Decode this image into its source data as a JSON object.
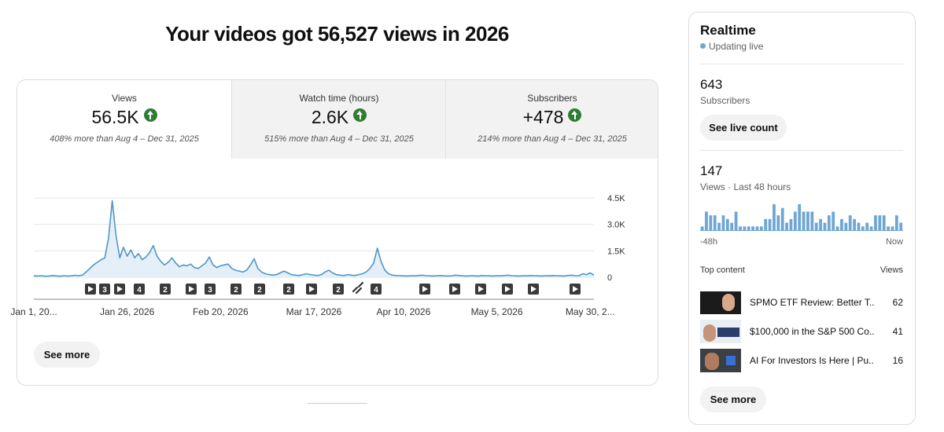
{
  "header": {
    "title": "Your videos got 56,527 views in 2026"
  },
  "metrics": [
    {
      "label": "Views",
      "value": "56.5K",
      "note": "408% more than Aug 4 – Dec 31, 2025"
    },
    {
      "label": "Watch time (hours)",
      "value": "2.6K",
      "note": "515% more than Aug 4 – Dec 31, 2025"
    },
    {
      "label": "Subscribers",
      "value": "+478",
      "note": "214% more than Aug 4 – Dec 31, 2025"
    }
  ],
  "chart_data": {
    "type": "line",
    "color": "#4f97c9",
    "fill": "#e4eff8",
    "grid": true,
    "ylim": [
      0,
      4500
    ],
    "yticks": [
      0,
      {
        "value": 1500,
        "label": "1.5K"
      },
      {
        "value": 3000,
        "label": "3.0K"
      },
      {
        "value": 4500,
        "label": "4.5K"
      }
    ],
    "categories": [
      "Jan 1, 20...",
      null,
      null,
      null,
      null,
      null,
      null,
      null,
      null,
      null,
      null,
      null,
      null,
      null,
      null,
      null,
      null,
      null,
      null,
      null,
      null,
      null,
      null,
      null,
      null,
      "Jan 26, 2026",
      null,
      null,
      null,
      null,
      null,
      null,
      null,
      null,
      null,
      null,
      null,
      null,
      null,
      null,
      null,
      null,
      null,
      null,
      null,
      null,
      null,
      null,
      null,
      null,
      "Feb 20, 2026",
      null,
      null,
      null,
      null,
      null,
      null,
      null,
      null,
      null,
      null,
      null,
      null,
      null,
      null,
      null,
      null,
      null,
      null,
      null,
      null,
      null,
      null,
      null,
      null,
      "Mar 17, 2026",
      null,
      null,
      null,
      null,
      null,
      null,
      null,
      null,
      null,
      null,
      null,
      null,
      null,
      null,
      null,
      null,
      null,
      null,
      null,
      null,
      null,
      null,
      null,
      "Apr 10, 2026",
      null,
      null,
      null,
      null,
      null,
      null,
      null,
      null,
      null,
      null,
      null,
      null,
      null,
      null,
      null,
      null,
      null,
      null,
      null,
      null,
      null,
      null,
      null,
      null,
      "May 5, 2026",
      null,
      null,
      null,
      null,
      null,
      null,
      null,
      null,
      null,
      null,
      null,
      null,
      null,
      null,
      null,
      null,
      null,
      null,
      null,
      null,
      null,
      null,
      null,
      null,
      "May 30, 2...",
      null
    ],
    "values": [
      80,
      70,
      90,
      60,
      70,
      100,
      80,
      60,
      90,
      70,
      80,
      110,
      90,
      120,
      300,
      500,
      700,
      850,
      1000,
      1100,
      2200,
      4350,
      2400,
      1100,
      1700,
      1200,
      1550,
      1100,
      1350,
      1000,
      1150,
      1400,
      1800,
      1200,
      900,
      700,
      850,
      1100,
      800,
      600,
      700,
      650,
      750,
      550,
      500,
      650,
      800,
      1150,
      700,
      550,
      650,
      700,
      750,
      500,
      400,
      350,
      300,
      400,
      700,
      1050,
      500,
      300,
      200,
      150,
      120,
      150,
      250,
      350,
      250,
      150,
      120,
      100,
      150,
      200,
      150,
      120,
      100,
      150,
      300,
      400,
      250,
      150,
      120,
      100,
      150,
      120,
      100,
      150,
      200,
      300,
      500,
      800,
      1650,
      900,
      400,
      200,
      120,
      100,
      90,
      80,
      70,
      90,
      80,
      100,
      120,
      90,
      80,
      70,
      90,
      100,
      80,
      70,
      90,
      120,
      100,
      80,
      70,
      90,
      80,
      70,
      100,
      90,
      80,
      70,
      90,
      80,
      100,
      120,
      90,
      80,
      70,
      90,
      80,
      100,
      90,
      80,
      70,
      90,
      80,
      100,
      90,
      80,
      70,
      100,
      120,
      90,
      80,
      200,
      150,
      250,
      120
    ],
    "markers": [
      "3",
      "4",
      "2",
      "3",
      "2",
      "2",
      "2",
      "2",
      "4"
    ]
  },
  "see_more": "See more",
  "realtime": {
    "title": "Realtime",
    "status": "Updating live",
    "subscribers": {
      "value": 643,
      "label": "Subscribers"
    },
    "button": "See live count",
    "views": {
      "value": 147,
      "label": "Views · Last 48 hours"
    },
    "chart": {
      "type": "bar",
      "color": "#6ea6d3",
      "values": [
        1,
        5,
        4,
        4,
        2,
        4,
        3,
        2,
        5,
        1,
        1,
        1,
        1,
        1,
        1,
        3,
        3,
        7,
        4,
        6,
        2,
        3,
        5,
        7,
        5,
        5,
        5,
        2,
        3,
        2,
        4,
        5,
        1,
        3,
        2,
        4,
        3,
        2,
        1,
        2,
        1,
        4,
        4,
        4,
        1,
        1,
        4,
        2
      ],
      "x_labels": [
        "-48h",
        "Now"
      ]
    },
    "top_content": {
      "header": "Top content",
      "views_header": "Views",
      "items": [
        {
          "title": "SPMO ETF Review: Better T...",
          "views": 62
        },
        {
          "title": "$100,000 in the S&P 500 Co...",
          "views": 41
        },
        {
          "title": "AI For Investors Is Here | Pu...",
          "views": 16
        }
      ],
      "button": "See more"
    }
  }
}
